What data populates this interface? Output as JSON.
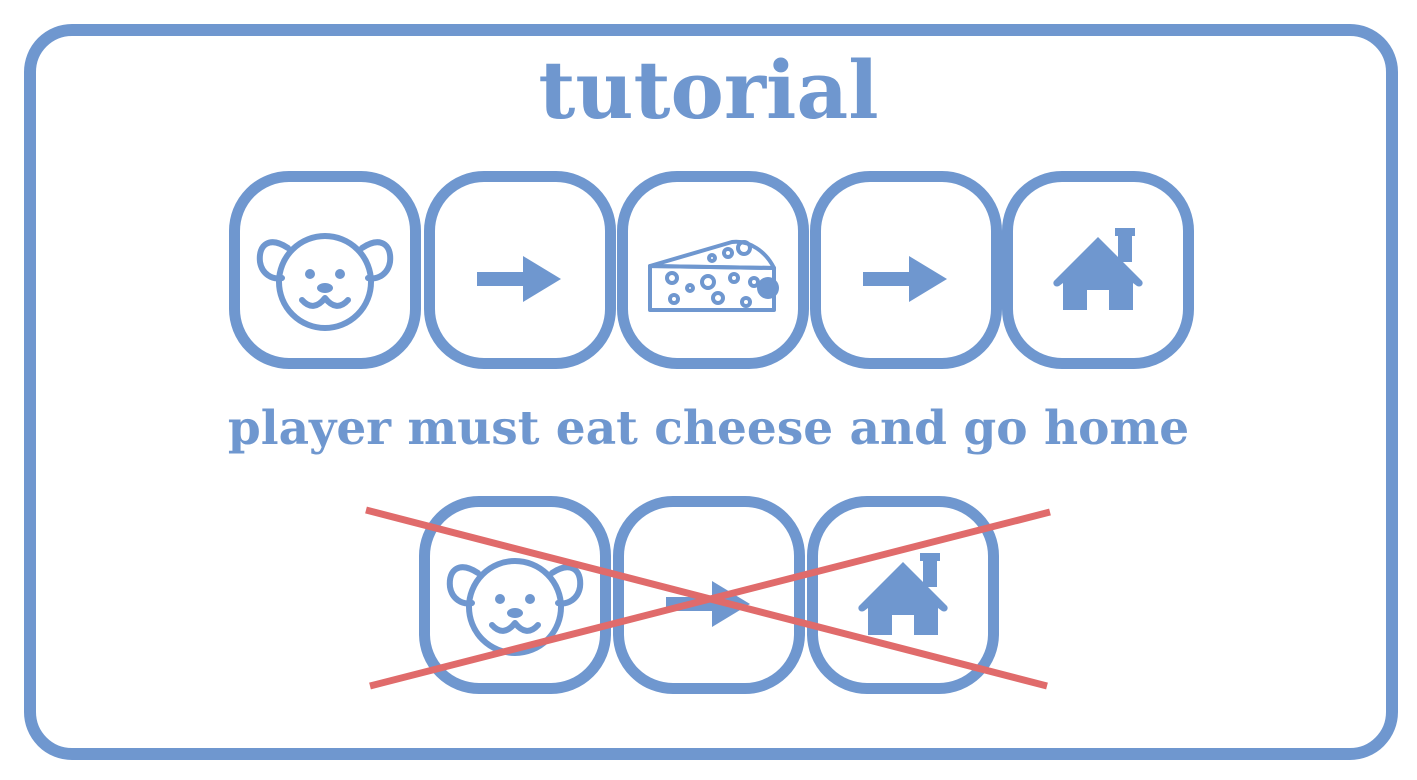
{
  "tutorial": {
    "title": "tutorial",
    "caption": "player must eat cheese and go home",
    "correct_sequence": [
      "mouse-icon",
      "arrow-right-icon",
      "cheese-icon",
      "arrow-right-icon",
      "house-icon"
    ],
    "wrong_sequence": [
      "mouse-icon",
      "arrow-right-icon",
      "house-icon"
    ]
  },
  "colors": {
    "accent": "#6f97cf",
    "cross": "#e06b6b",
    "background": "#ffffff"
  }
}
